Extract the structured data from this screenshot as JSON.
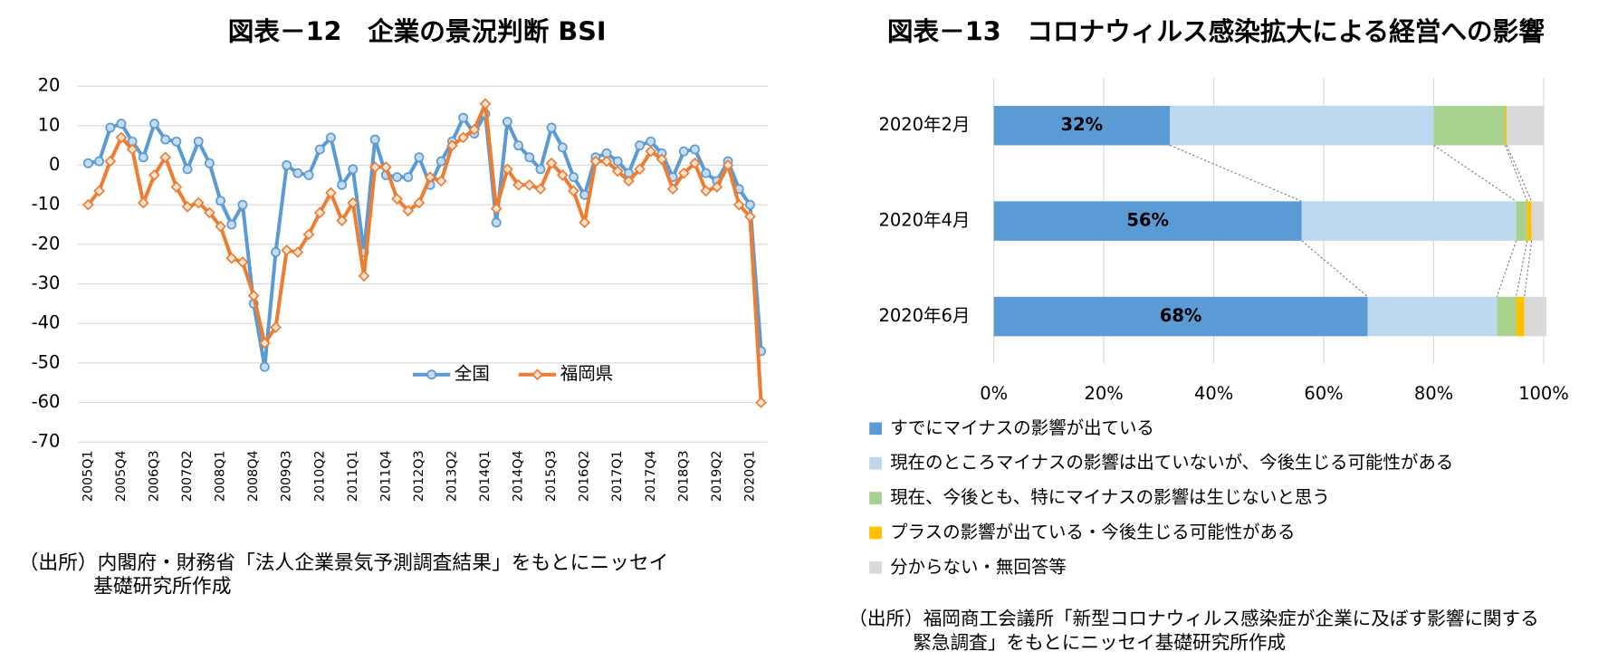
{
  "chart_data": [
    {
      "type": "line",
      "title": "図表－12　企業の景況判断 BSI",
      "categories": [
        "2005Q1",
        null,
        null,
        "2005Q4",
        null,
        null,
        "2006Q3",
        null,
        null,
        "2007Q2",
        null,
        null,
        "2008Q1",
        null,
        null,
        "2008Q4",
        null,
        null,
        "2009Q3",
        null,
        null,
        "2010Q2",
        null,
        null,
        "2011Q1",
        null,
        null,
        "2011Q4",
        null,
        null,
        "2012Q3",
        null,
        null,
        "2013Q2",
        null,
        null,
        "2014Q1",
        null,
        null,
        "2014Q4",
        null,
        null,
        "2015Q3",
        null,
        null,
        "2016Q2",
        null,
        null,
        "2017Q1",
        null,
        null,
        "2017Q4",
        null,
        null,
        "2018Q3",
        null,
        null,
        "2019Q2",
        null,
        null,
        "2020Q1",
        null
      ],
      "series": [
        {
          "name": "全国",
          "color": "#5b9bd5",
          "marker": "circle",
          "values": [
            0.5,
            1,
            9.5,
            10.5,
            6,
            2,
            10.5,
            6.5,
            6,
            -1,
            6,
            0.5,
            -9,
            -15,
            -10,
            -35,
            -51,
            -22,
            0,
            -2,
            -2.5,
            4,
            7,
            -5,
            -1,
            -22,
            6.5,
            -2.5,
            -3,
            -3,
            2,
            -5,
            1,
            6,
            12,
            8,
            13,
            -14.5,
            11,
            5,
            2,
            -1,
            9.5,
            4.5,
            -3,
            -7.5,
            2,
            3,
            1,
            -2,
            5,
            6,
            3,
            -3,
            3.5,
            4,
            -2,
            -4,
            1,
            -6,
            -10,
            -47
          ]
        },
        {
          "name": "福岡県",
          "color": "#ed7d31",
          "marker": "diamond",
          "values": [
            -10,
            -6.5,
            1,
            7,
            4,
            -9.5,
            -2.5,
            2,
            -5.5,
            -10.5,
            -9.5,
            -12,
            -15.5,
            -23.5,
            -24.5,
            -33,
            -45,
            -41,
            -21.5,
            -22,
            -17.5,
            -12,
            -7,
            -14,
            -9.5,
            -28,
            -0.5,
            -0.5,
            -8.5,
            -11.5,
            -9.5,
            -3,
            -4,
            5,
            7,
            9,
            15.5,
            -11,
            -1,
            -5,
            -5,
            -6,
            0.5,
            -2.5,
            -6.5,
            -14.5,
            1,
            1,
            -1.5,
            -4,
            -1,
            3.5,
            1.5,
            -6,
            -2,
            0.5,
            -6.5,
            -5.5,
            0,
            -10,
            -13,
            -60
          ]
        }
      ],
      "ylim": [
        -70,
        20
      ],
      "yticks": [
        -70,
        -60,
        -50,
        -40,
        -30,
        -20,
        -10,
        0,
        10,
        20
      ],
      "grid": true,
      "legend": "center",
      "note": [
        "（出所）内閣府・財務省「法人企業景気予測調査結果」をもとにニッセイ",
        "基礎研究所作成"
      ]
    },
    {
      "type": "stacked-barh",
      "title": "図表－13　コロナウィルス感染拡大による経営への影響",
      "categories": [
        "2020年2月",
        "2020年4月",
        "2020年6月"
      ],
      "series": [
        {
          "name": "すでにマイナスの影響が出ている",
          "color": "#5b9bd5",
          "values": [
            32,
            56,
            68
          ],
          "value_labels": [
            "32%",
            "56%",
            "68%"
          ]
        },
        {
          "name": "現在のところマイナスの影響は出ていないが、今後生じる可能性がある",
          "color": "#bdd7ee",
          "values": [
            48,
            39,
            23.5
          ]
        },
        {
          "name": "現在、今後とも、特にマイナスの影響は生じないと思う",
          "color": "#a9d18e",
          "values": [
            13,
            2,
            3.5
          ]
        },
        {
          "name": "プラスの影響が出ている・今後生じる可能性がある",
          "color": "#ffc000",
          "values": [
            0.3,
            0.8,
            1.5
          ]
        },
        {
          "name": "分からない・無回答等",
          "color": "#d9d9d9",
          "values": [
            6.7,
            2.2,
            4
          ]
        }
      ],
      "xlim": [
        0,
        100
      ],
      "xticks": [
        {
          "value": 0,
          "label": "0%"
        },
        {
          "value": 20,
          "label": "20%"
        },
        {
          "value": 40,
          "label": "40%"
        },
        {
          "value": 60,
          "label": "60%"
        },
        {
          "value": 80,
          "label": "80%"
        },
        {
          "value": 100,
          "label": "100%"
        }
      ],
      "grid": true,
      "legend": "bottom",
      "note": [
        "（出所）福岡商工会議所「新型コロナウィルス感染症が企業に及ぼす影響に関する",
        "緊急調査」をもとにニッセイ基礎研究所作成"
      ]
    }
  ]
}
